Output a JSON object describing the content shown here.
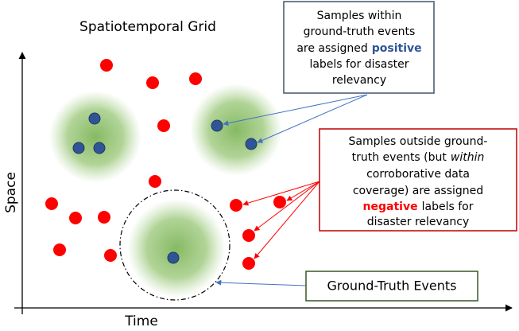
{
  "title": "Spatiotemporal Grid",
  "axes": {
    "x": "Time",
    "y": "Space"
  },
  "positive_box": {
    "lines": [
      [
        "Samples within"
      ],
      [
        "ground-truth events"
      ],
      [
        "are assigned",
        "positive"
      ],
      [
        "labels for disaster"
      ],
      [
        "relevancy"
      ]
    ]
  },
  "negative_box": {
    "lines": [
      [
        "Samples outside ground-"
      ],
      [
        "truth events (but",
        "within"
      ],
      [
        "corroborative data"
      ],
      [
        "coverage) are assigned"
      ],
      [
        "negative",
        "labels for"
      ],
      [
        "disaster relevancy"
      ]
    ]
  },
  "events_box": {
    "label": "Ground-Truth Events"
  }
}
